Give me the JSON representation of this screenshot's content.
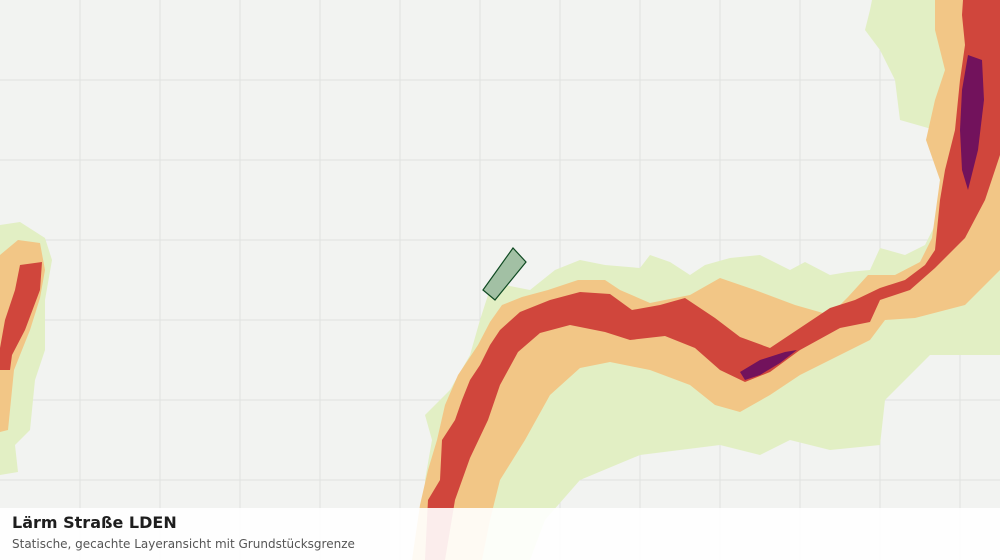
{
  "map": {
    "layer_title": "Lärm Straße LDEN",
    "layer_subtitle": "Statische, gecachte Layeransicht mit Grundstücksgrenze",
    "colors": {
      "background": "#f2f3f1",
      "grid": "#e0e2df",
      "noise_low": "#e2efc4",
      "noise_mid": "#f2c686",
      "noise_high": "#d0463c",
      "noise_very_high": "#72125c",
      "parcel_fill": "#a2c0a4",
      "parcel_stroke": "#0f4a22"
    },
    "features": [
      "grid",
      "noise-band-low",
      "noise-band-mid",
      "noise-band-high",
      "noise-band-very-high",
      "parcel-boundary"
    ]
  }
}
